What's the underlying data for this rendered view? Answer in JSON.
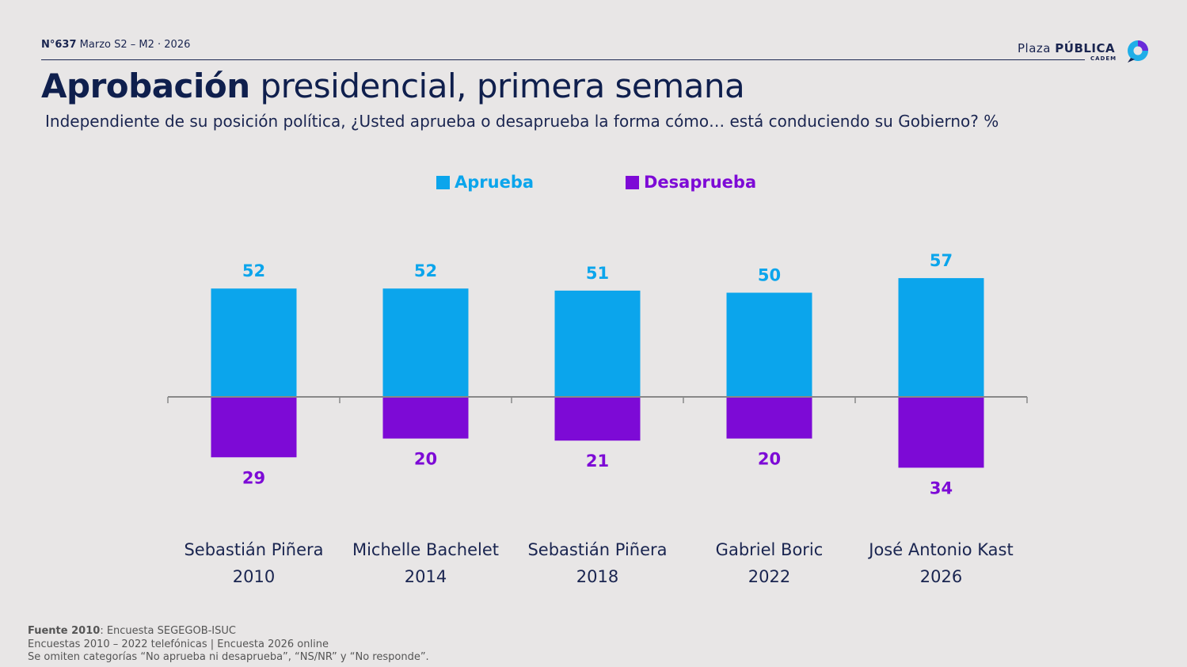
{
  "header": {
    "issue": "N°637",
    "period": "Marzo S2 – M2 · 2026",
    "logo_light": "Plaza",
    "logo_bold": "PÚBLICA",
    "logo_sub": "CADEM"
  },
  "title": {
    "bold": "Aprobación",
    "rest": " presidencial, primera semana"
  },
  "subtitle": "Independiente de su posición política, ¿Usted aprueba o desaprueba la forma cómo… está conduciendo su Gobierno? %",
  "colors": {
    "approve": "#0ba5ec",
    "disapprove": "#7d0ad6",
    "axis": "#888888",
    "category_text": "#1a2550"
  },
  "chart_data": {
    "type": "bar",
    "title": "Aprobación presidencial, primera semana",
    "xlabel": "",
    "ylabel": "%",
    "legend_position": "top-center",
    "categories": [
      {
        "name": "Sebastián Piñera",
        "year": "2010"
      },
      {
        "name": "Michelle Bachelet",
        "year": "2014"
      },
      {
        "name": "Sebastián Piñera",
        "year": "2018"
      },
      {
        "name": "Gabriel Boric",
        "year": "2022"
      },
      {
        "name": "José Antonio Kast",
        "year": "2026"
      }
    ],
    "series": [
      {
        "name": "Aprueba",
        "direction": "up",
        "values": [
          52,
          52,
          51,
          50,
          57
        ]
      },
      {
        "name": "Desaprueba",
        "direction": "down",
        "values": [
          29,
          20,
          21,
          20,
          34
        ]
      }
    ],
    "ylim": [
      -40,
      60
    ]
  },
  "footer": {
    "line1_bold": "Fuente 2010",
    "line1_rest": ": Encuesta SEGEGOB-ISUC",
    "line2": "Encuestas 2010 – 2022 telefónicas | Encuesta 2026 online",
    "line3": "Se omiten categorías “No aprueba ni desaprueba”, “NS/NR” y “No responde”."
  }
}
